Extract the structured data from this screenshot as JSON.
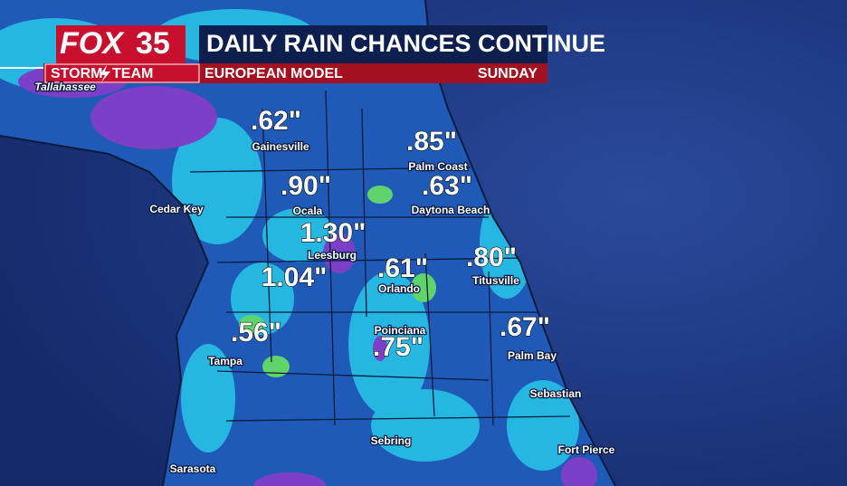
{
  "header": {
    "logo": "FOX",
    "logo_number": "35",
    "brand": "STORM",
    "brand_2": "TEAM",
    "title": "DAILY RAIN CHANCES CONTINUE",
    "subtitle": "EUROPEAN MODEL",
    "day": "SUNDAY"
  },
  "rainfall": [
    {
      "amount": ".62\"",
      "city": "Gainesville"
    },
    {
      "amount": ".85\"",
      "city": "Palm Coast"
    },
    {
      "amount": ".90\"",
      "city": "Ocala"
    },
    {
      "amount": ".63\"",
      "city": "Daytona Beach"
    },
    {
      "amount": "1.30\"",
      "city": "Leesburg"
    },
    {
      "amount": "1.04\""
    },
    {
      "amount": ".61\"",
      "city": "Orlando"
    },
    {
      "amount": ".80\"",
      "city": "Titusville"
    },
    {
      "amount": ".56\""
    },
    {
      "amount": ".75\"",
      "city": "Poinciana"
    },
    {
      "amount": ".67\"",
      "city": "Palm Bay"
    }
  ],
  "cities": [
    "Tallahassee",
    "Cedar Key",
    "Tampa",
    "Sebastian",
    "Sebring",
    "Fort Pierce",
    "Sarasota"
  ]
}
